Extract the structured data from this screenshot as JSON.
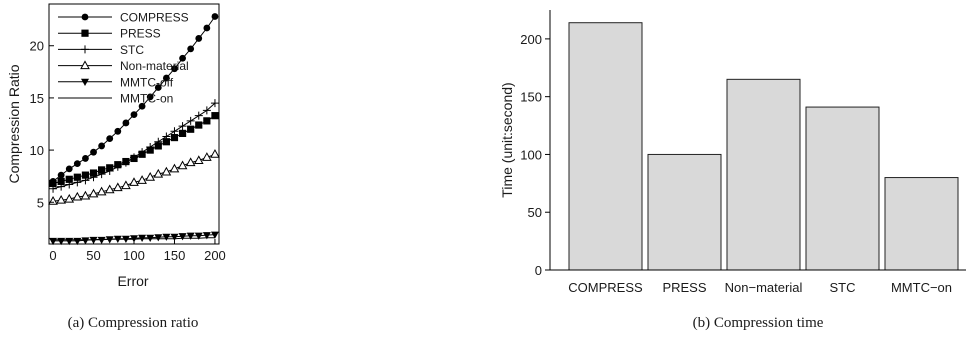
{
  "chart_data": [
    {
      "type": "line",
      "caption": "(a)  Compression ratio",
      "xlabel": "Error",
      "ylabel": "Compression Ratio",
      "xlim": [
        -5,
        205
      ],
      "ylim": [
        1,
        24
      ],
      "xticks": [
        0,
        50,
        100,
        150,
        200
      ],
      "yticks": [
        5,
        10,
        15,
        20
      ],
      "grid": false,
      "legend": "top-left",
      "x": [
        0,
        10,
        20,
        30,
        40,
        50,
        60,
        70,
        80,
        90,
        100,
        110,
        120,
        130,
        140,
        150,
        160,
        170,
        180,
        190,
        200
      ],
      "series": [
        {
          "name": "COMPRESS",
          "marker": "circle",
          "values": [
            7.0,
            7.6,
            8.2,
            8.7,
            9.2,
            9.8,
            10.4,
            11.1,
            11.8,
            12.6,
            13.4,
            14.2,
            15.1,
            16.0,
            16.9,
            17.8,
            18.8,
            19.7,
            20.7,
            21.7,
            22.8
          ]
        },
        {
          "name": "PRESS",
          "marker": "square",
          "values": [
            6.8,
            7.0,
            7.2,
            7.4,
            7.6,
            7.8,
            8.1,
            8.3,
            8.6,
            8.9,
            9.2,
            9.6,
            10.0,
            10.4,
            10.8,
            11.2,
            11.6,
            12.0,
            12.4,
            12.8,
            13.3
          ]
        },
        {
          "name": "STC",
          "marker": "plus",
          "values": [
            6.3,
            6.5,
            6.7,
            6.9,
            7.1,
            7.4,
            7.7,
            8.0,
            8.4,
            8.8,
            9.3,
            9.8,
            10.3,
            10.8,
            11.3,
            11.8,
            12.3,
            12.8,
            13.3,
            13.8,
            14.5
          ]
        },
        {
          "name": "Non-material",
          "marker": "triangle-up",
          "values": [
            5.1,
            5.2,
            5.3,
            5.5,
            5.6,
            5.8,
            6.0,
            6.2,
            6.4,
            6.6,
            6.9,
            7.1,
            7.4,
            7.7,
            7.9,
            8.2,
            8.5,
            8.8,
            9.0,
            9.3,
            9.6
          ]
        },
        {
          "name": "MMTC-off",
          "marker": "triangle-down",
          "values": [
            1.3,
            1.3,
            1.3,
            1.3,
            1.35,
            1.4,
            1.4,
            1.45,
            1.5,
            1.5,
            1.55,
            1.6,
            1.6,
            1.65,
            1.7,
            1.7,
            1.75,
            1.8,
            1.8,
            1.85,
            1.9
          ]
        },
        {
          "name": "MMTC-on",
          "marker": "none",
          "values": [
            1.4,
            1.4,
            1.4,
            1.4,
            1.4,
            1.4,
            1.45,
            1.45,
            1.45,
            1.45,
            1.45,
            1.5,
            1.5,
            1.5,
            1.5,
            1.5,
            1.55,
            1.55,
            1.55,
            1.6,
            1.6
          ]
        }
      ]
    },
    {
      "type": "bar",
      "caption": "(b)  Compression time",
      "xlabel": "",
      "ylabel": "Time (unit:second)",
      "ylim": [
        0,
        225
      ],
      "yticks": [
        0,
        50,
        100,
        150,
        200
      ],
      "grid": false,
      "bar_color": "#d9d9d9",
      "categories": [
        "COMPRESS",
        "PRESS",
        "Non−material",
        "STC",
        "MMTC−on"
      ],
      "values": [
        214,
        100,
        165,
        141,
        80
      ]
    }
  ]
}
